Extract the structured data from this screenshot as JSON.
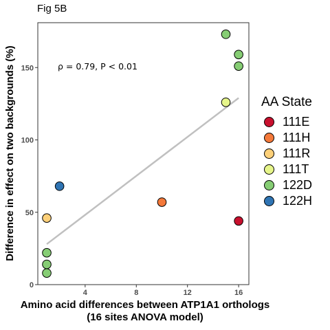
{
  "fig_label": "Fig 5B",
  "chart_data": {
    "type": "scatter",
    "xlabel": [
      "Amino acid differences between ATP1A1 orthologs",
      "(16 sites ANOVA model)"
    ],
    "ylabel": "Difference in effect on two backgrounds (%)",
    "xlim": [
      0.3,
      16.8
    ],
    "ylim": [
      0,
      181
    ],
    "xticks": [
      4,
      8,
      12,
      16
    ],
    "yticks": [
      0,
      50,
      100,
      150
    ],
    "annotation": "ρ = 0.79, P < 0.01",
    "legend": {
      "title": "AA State",
      "position": "right",
      "entries": [
        {
          "label": "111E",
          "color": "#c8102e"
        },
        {
          "label": "111H",
          "color": "#f4793a"
        },
        {
          "label": "111R",
          "color": "#fdd079"
        },
        {
          "label": "111T",
          "color": "#e6f58a"
        },
        {
          "label": "122D",
          "color": "#86cd74"
        },
        {
          "label": "122H",
          "color": "#2f74b3"
        }
      ]
    },
    "points": [
      {
        "x": 1,
        "y": 22,
        "group": "122D"
      },
      {
        "x": 1,
        "y": 14,
        "group": "122D"
      },
      {
        "x": 1,
        "y": 8,
        "group": "122D"
      },
      {
        "x": 1,
        "y": 46,
        "group": "111R"
      },
      {
        "x": 2,
        "y": 68,
        "group": "122H"
      },
      {
        "x": 10,
        "y": 57,
        "group": "111H"
      },
      {
        "x": 15,
        "y": 173,
        "group": "122D"
      },
      {
        "x": 16,
        "y": 159,
        "group": "122D"
      },
      {
        "x": 16,
        "y": 151,
        "group": "122D"
      },
      {
        "x": 15,
        "y": 126,
        "group": "111T"
      },
      {
        "x": 16,
        "y": 44,
        "group": "111E"
      }
    ],
    "fit_line": {
      "x": [
        1,
        16
      ],
      "y": [
        28,
        129
      ],
      "color": "#c0c0c0"
    },
    "grid": false
  }
}
